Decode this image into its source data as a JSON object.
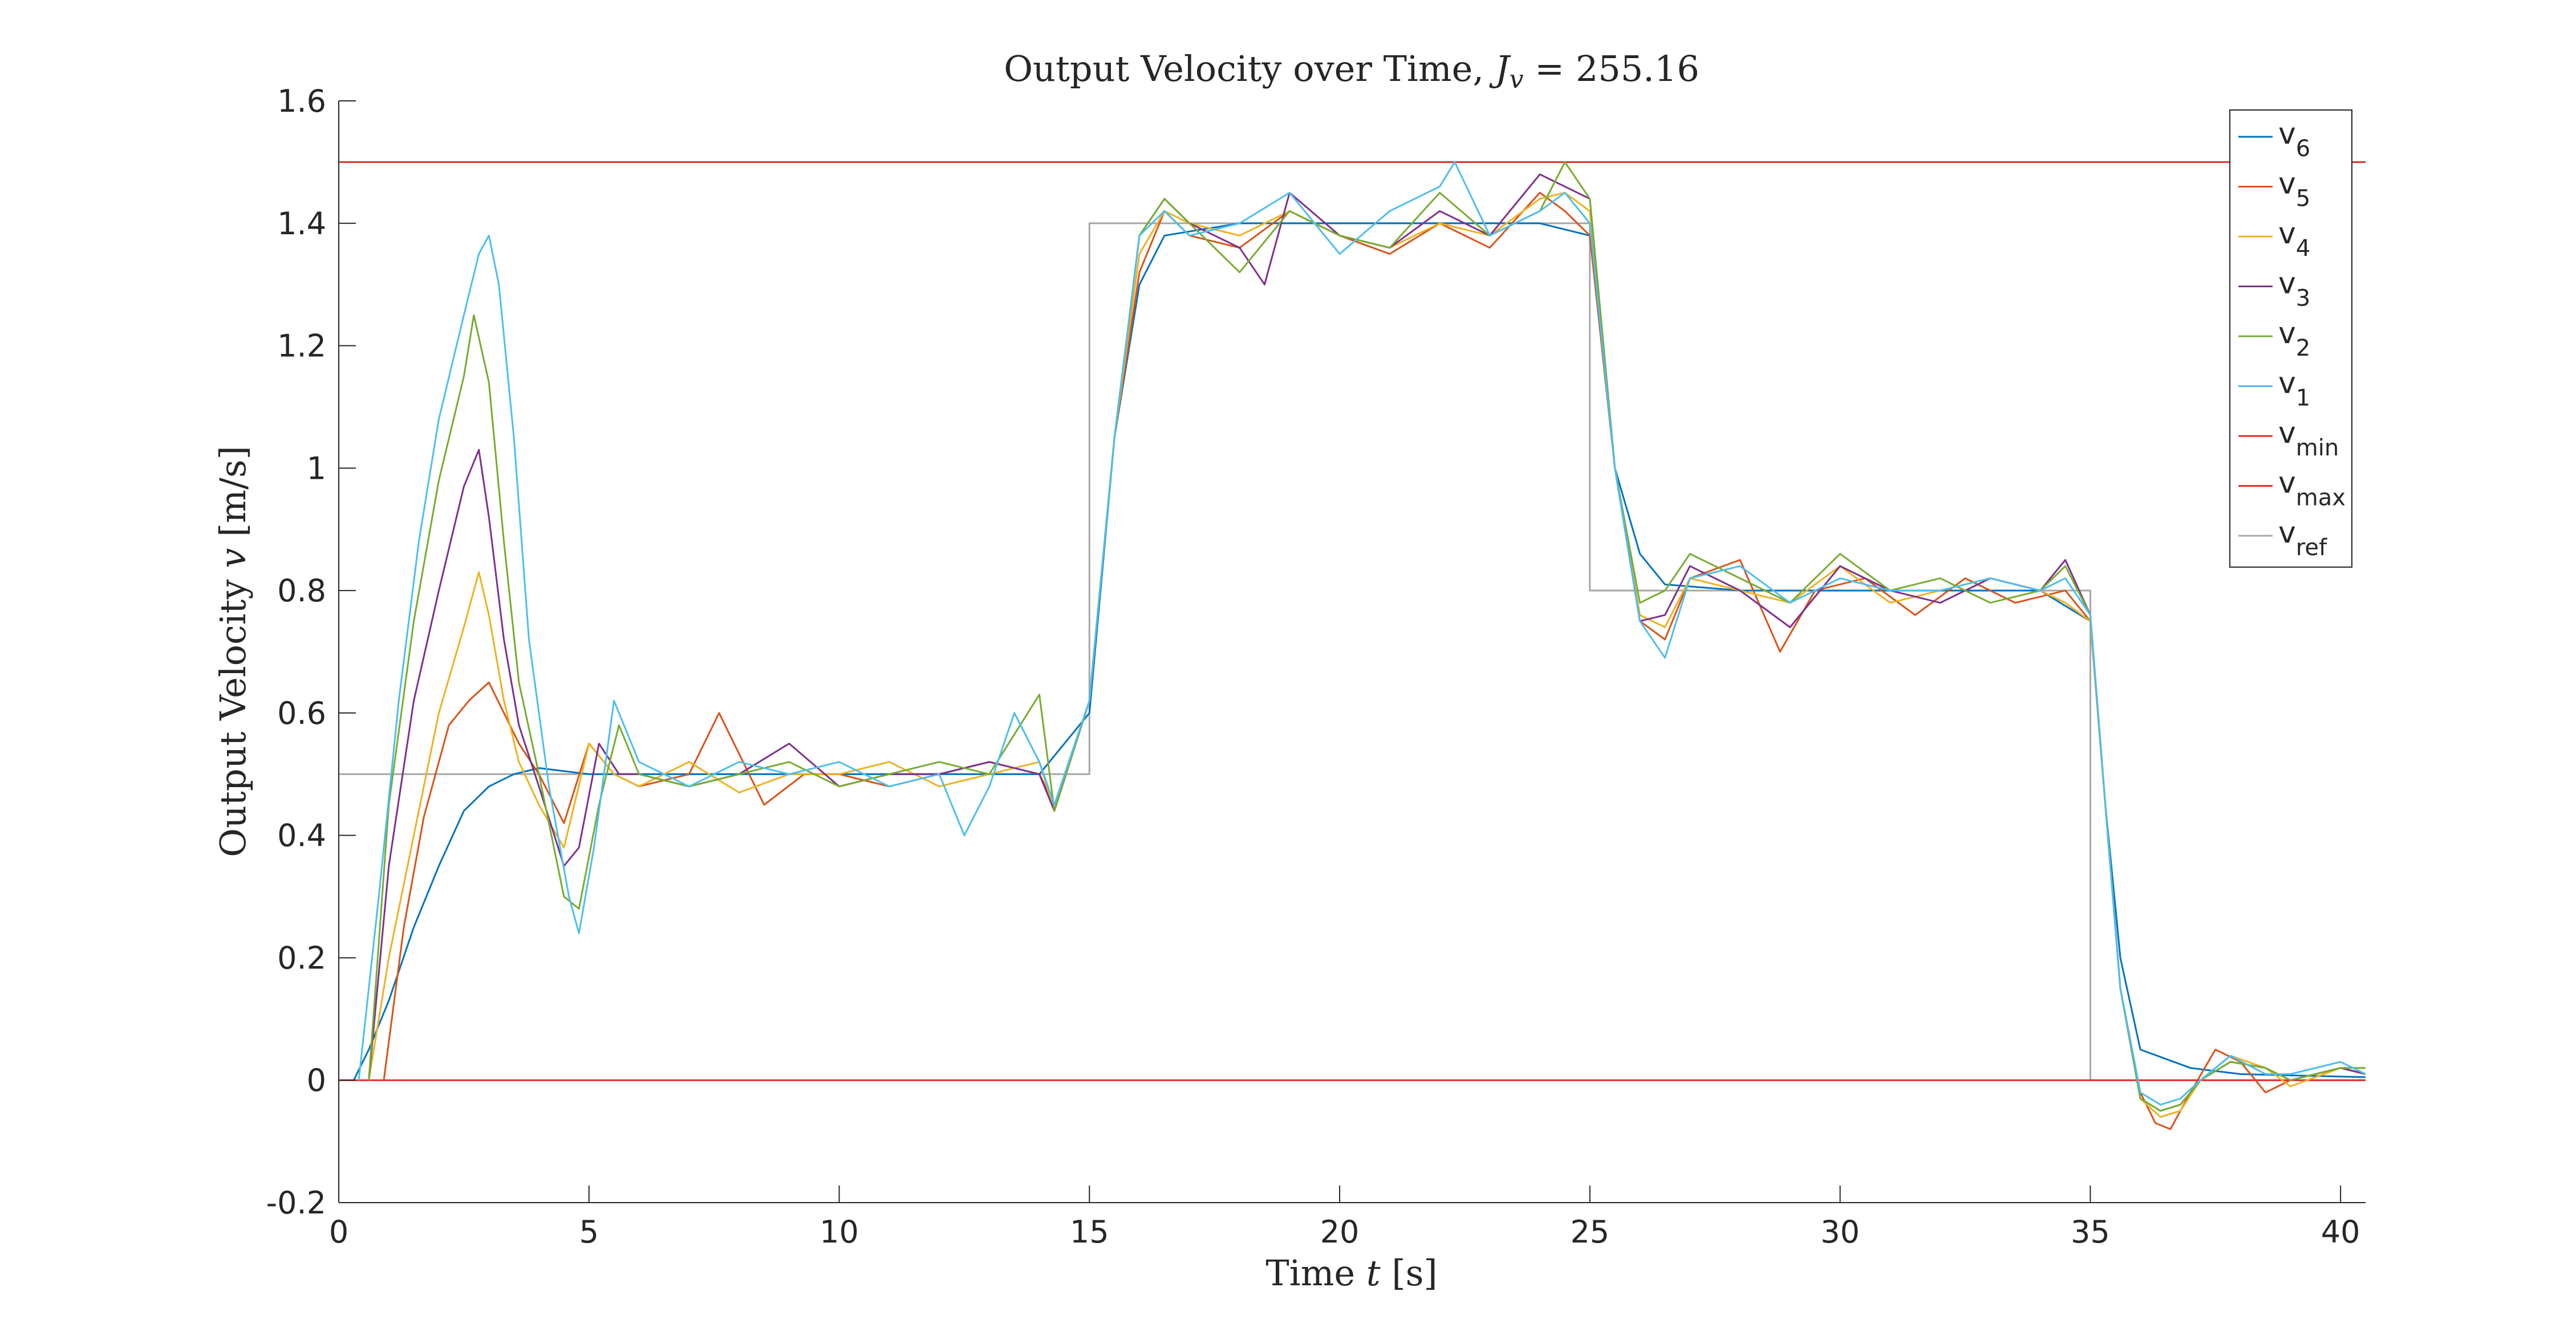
{
  "chart_data": {
    "type": "line",
    "title": "Output Velocity over Time, ",
    "title_math": {
      "J": "J",
      "sub": "v",
      "eq": " = 255.16"
    },
    "xlabel": {
      "text": "Time ",
      "var": "t",
      "unit": "[s]"
    },
    "ylabel": {
      "text": "Output Velocity ",
      "var": "v",
      "unit": "[m/s]"
    },
    "xlim": [
      0,
      40.5
    ],
    "ylim": [
      -0.2,
      1.6
    ],
    "xticks": [
      0,
      5,
      10,
      15,
      20,
      25,
      30,
      35,
      40
    ],
    "yticks": [
      -0.2,
      0,
      0.2,
      0.4,
      0.6,
      0.8,
      1,
      1.2,
      1.4,
      1.6
    ],
    "xtick_labels": [
      "0",
      "5",
      "10",
      "15",
      "20",
      "25",
      "30",
      "35",
      "40"
    ],
    "ytick_labels": [
      "-0.2",
      "0",
      "0.2",
      "0.4",
      "0.6",
      "0.8",
      "1",
      "1.2",
      "1.4",
      "1.6"
    ],
    "grid": false,
    "legend_position": "top-right",
    "series": [
      {
        "name": "v",
        "sub": "6",
        "color": "#0072BD",
        "x": [
          0.3,
          0.6,
          1.0,
          1.5,
          2.0,
          2.5,
          3.0,
          3.5,
          4.0,
          5.0,
          6.0,
          8.0,
          10.0,
          12.0,
          14.0,
          15.0,
          15.5,
          16.0,
          16.5,
          18.0,
          20.0,
          22.0,
          24.0,
          25.0,
          25.5,
          26.0,
          26.5,
          28.0,
          30.0,
          32.0,
          34.0,
          35.0,
          35.3,
          35.6,
          36.0,
          37.0,
          38.0,
          40.5
        ],
        "y": [
          0.0,
          0.05,
          0.13,
          0.25,
          0.35,
          0.44,
          0.48,
          0.5,
          0.51,
          0.5,
          0.5,
          0.5,
          0.5,
          0.5,
          0.5,
          0.6,
          1.05,
          1.3,
          1.38,
          1.4,
          1.4,
          1.4,
          1.4,
          1.38,
          1.0,
          0.86,
          0.81,
          0.8,
          0.8,
          0.8,
          0.8,
          0.75,
          0.45,
          0.2,
          0.05,
          0.02,
          0.01,
          0.005
        ]
      },
      {
        "name": "v",
        "sub": "5",
        "color": "#D95319",
        "x": [
          0.9,
          1.3,
          1.7,
          2.2,
          2.6,
          3.0,
          3.3,
          3.6,
          4.0,
          4.5,
          5.0,
          5.5,
          6.0,
          7.0,
          7.6,
          8.5,
          9.3,
          10.0,
          11.0,
          12.0,
          13.0,
          14.0,
          14.3,
          15.0,
          15.5,
          16.0,
          16.5,
          17.0,
          18.0,
          19.0,
          20.0,
          21.0,
          22.0,
          23.0,
          24.0,
          24.5,
          25.0,
          25.5,
          26.0,
          26.5,
          27.0,
          28.0,
          28.8,
          29.5,
          30.5,
          31.5,
          32.5,
          33.5,
          34.5,
          35.0,
          35.3,
          35.6,
          36.0,
          36.3,
          36.6,
          37.0,
          37.5,
          38.0,
          38.5,
          39.0,
          40.0,
          40.5
        ],
        "y": [
          0.0,
          0.25,
          0.43,
          0.58,
          0.62,
          0.65,
          0.6,
          0.55,
          0.5,
          0.42,
          0.55,
          0.5,
          0.48,
          0.5,
          0.6,
          0.45,
          0.5,
          0.5,
          0.48,
          0.5,
          0.52,
          0.5,
          0.45,
          0.62,
          1.05,
          1.32,
          1.42,
          1.38,
          1.36,
          1.42,
          1.38,
          1.35,
          1.4,
          1.36,
          1.45,
          1.42,
          1.38,
          1.0,
          0.75,
          0.72,
          0.82,
          0.85,
          0.7,
          0.8,
          0.82,
          0.76,
          0.82,
          0.78,
          0.8,
          0.75,
          0.45,
          0.15,
          -0.02,
          -0.07,
          -0.08,
          -0.02,
          0.05,
          0.03,
          -0.02,
          0.0,
          0.02,
          0.01
        ]
      },
      {
        "name": "v",
        "sub": "4",
        "color": "#EDB120",
        "x": [
          0.6,
          1.0,
          1.5,
          2.0,
          2.5,
          2.8,
          3.0,
          3.3,
          3.6,
          4.0,
          4.5,
          5.0,
          5.5,
          6.0,
          7.0,
          8.0,
          9.0,
          10.0,
          11.0,
          12.0,
          13.0,
          14.0,
          14.3,
          15.0,
          15.5,
          16.0,
          16.5,
          17.0,
          18.0,
          19.0,
          20.0,
          21.0,
          22.0,
          23.0,
          24.0,
          24.5,
          25.0,
          25.5,
          26.0,
          26.5,
          27.0,
          28.0,
          29.0,
          30.0,
          31.0,
          32.0,
          33.0,
          34.0,
          34.5,
          35.0,
          35.3,
          35.6,
          36.0,
          36.4,
          36.8,
          37.2,
          37.8,
          38.5,
          39.0,
          40.0,
          40.5
        ],
        "y": [
          0.0,
          0.2,
          0.4,
          0.6,
          0.74,
          0.83,
          0.76,
          0.62,
          0.52,
          0.45,
          0.38,
          0.55,
          0.5,
          0.48,
          0.52,
          0.47,
          0.5,
          0.5,
          0.52,
          0.48,
          0.5,
          0.52,
          0.44,
          0.62,
          1.05,
          1.35,
          1.42,
          1.4,
          1.38,
          1.42,
          1.38,
          1.36,
          1.4,
          1.38,
          1.44,
          1.45,
          1.42,
          1.0,
          0.76,
          0.74,
          0.82,
          0.8,
          0.78,
          0.84,
          0.78,
          0.8,
          0.82,
          0.8,
          0.78,
          0.75,
          0.45,
          0.15,
          -0.03,
          -0.06,
          -0.05,
          0.0,
          0.04,
          0.02,
          -0.01,
          0.02,
          0.01
        ]
      },
      {
        "name": "v",
        "sub": "3",
        "color": "#7E2F8E",
        "x": [
          0.6,
          1.0,
          1.5,
          2.0,
          2.5,
          2.8,
          3.0,
          3.3,
          3.6,
          4.0,
          4.5,
          4.8,
          5.2,
          5.6,
          6.0,
          7.0,
          8.0,
          9.0,
          10.0,
          11.0,
          12.0,
          13.0,
          14.0,
          14.3,
          15.0,
          15.5,
          16.0,
          16.5,
          17.0,
          18.0,
          18.5,
          19.0,
          20.0,
          21.0,
          22.0,
          23.0,
          24.0,
          24.5,
          25.0,
          25.5,
          26.0,
          26.5,
          27.0,
          28.0,
          29.0,
          30.0,
          31.0,
          32.0,
          33.0,
          34.0,
          34.5,
          35.0,
          35.3,
          35.6,
          36.0,
          36.4,
          36.8,
          37.2,
          37.8,
          38.5,
          39.0,
          40.0,
          40.5
        ],
        "y": [
          0.0,
          0.35,
          0.62,
          0.8,
          0.97,
          1.03,
          0.92,
          0.72,
          0.58,
          0.48,
          0.35,
          0.38,
          0.55,
          0.5,
          0.5,
          0.48,
          0.5,
          0.55,
          0.48,
          0.5,
          0.5,
          0.52,
          0.5,
          0.44,
          0.62,
          1.05,
          1.38,
          1.44,
          1.4,
          1.36,
          1.3,
          1.45,
          1.38,
          1.36,
          1.42,
          1.38,
          1.48,
          1.46,
          1.44,
          1.0,
          0.75,
          0.76,
          0.84,
          0.8,
          0.74,
          0.84,
          0.8,
          0.78,
          0.82,
          0.8,
          0.85,
          0.76,
          0.45,
          0.15,
          -0.03,
          -0.05,
          -0.04,
          0.0,
          0.03,
          0.02,
          0.0,
          0.02,
          0.01
        ]
      },
      {
        "name": "v",
        "sub": "2",
        "color": "#77AC30",
        "x": [
          0.6,
          1.0,
          1.5,
          2.0,
          2.5,
          2.7,
          3.0,
          3.3,
          3.6,
          4.0,
          4.5,
          4.8,
          5.2,
          5.6,
          6.0,
          7.0,
          8.0,
          9.0,
          10.0,
          11.0,
          12.0,
          13.0,
          14.0,
          14.3,
          15.0,
          15.5,
          16.0,
          16.5,
          17.0,
          18.0,
          19.0,
          20.0,
          21.0,
          22.0,
          23.0,
          24.0,
          24.5,
          25.0,
          25.5,
          26.0,
          26.5,
          27.0,
          28.0,
          29.0,
          30.0,
          31.0,
          32.0,
          33.0,
          34.0,
          34.5,
          35.0,
          35.3,
          35.6,
          36.0,
          36.4,
          36.8,
          37.2,
          37.8,
          38.5,
          39.0,
          40.0,
          40.5
        ],
        "y": [
          0.0,
          0.45,
          0.75,
          0.98,
          1.15,
          1.25,
          1.14,
          0.88,
          0.65,
          0.5,
          0.3,
          0.28,
          0.45,
          0.58,
          0.5,
          0.48,
          0.5,
          0.52,
          0.48,
          0.5,
          0.52,
          0.5,
          0.63,
          0.44,
          0.62,
          1.05,
          1.38,
          1.44,
          1.4,
          1.32,
          1.42,
          1.38,
          1.36,
          1.45,
          1.38,
          1.42,
          1.5,
          1.44,
          1.0,
          0.78,
          0.8,
          0.86,
          0.82,
          0.78,
          0.86,
          0.8,
          0.82,
          0.78,
          0.8,
          0.84,
          0.76,
          0.45,
          0.15,
          -0.03,
          -0.05,
          -0.04,
          0.0,
          0.03,
          0.02,
          0.0,
          0.02,
          0.02
        ]
      },
      {
        "name": "v",
        "sub": "1",
        "color": "#4DBEEE",
        "x": [
          0.4,
          0.8,
          1.2,
          1.6,
          2.0,
          2.5,
          2.8,
          3.0,
          3.2,
          3.5,
          3.8,
          4.2,
          4.6,
          4.8,
          5.1,
          5.5,
          6.0,
          7.0,
          8.0,
          9.0,
          10.0,
          11.0,
          12.0,
          12.5,
          13.0,
          13.5,
          14.0,
          14.3,
          15.0,
          15.5,
          16.0,
          16.5,
          17.0,
          18.0,
          19.0,
          20.0,
          21.0,
          22.0,
          22.3,
          23.0,
          24.0,
          24.5,
          25.0,
          25.5,
          26.0,
          26.5,
          27.0,
          28.0,
          29.0,
          30.0,
          31.0,
          32.0,
          33.0,
          34.0,
          34.5,
          35.0,
          35.3,
          35.6,
          36.0,
          36.4,
          36.8,
          37.2,
          37.8,
          38.5,
          39.0,
          40.0,
          40.5
        ],
        "y": [
          0.0,
          0.3,
          0.62,
          0.88,
          1.08,
          1.25,
          1.35,
          1.38,
          1.3,
          1.05,
          0.72,
          0.48,
          0.3,
          0.24,
          0.38,
          0.62,
          0.52,
          0.48,
          0.52,
          0.5,
          0.52,
          0.48,
          0.5,
          0.4,
          0.48,
          0.6,
          0.52,
          0.45,
          0.62,
          1.05,
          1.38,
          1.42,
          1.38,
          1.4,
          1.45,
          1.35,
          1.42,
          1.46,
          1.5,
          1.38,
          1.42,
          1.45,
          1.4,
          1.0,
          0.75,
          0.69,
          0.82,
          0.84,
          0.78,
          0.82,
          0.8,
          0.8,
          0.82,
          0.8,
          0.82,
          0.76,
          0.45,
          0.15,
          -0.02,
          -0.04,
          -0.03,
          0.0,
          0.04,
          0.01,
          0.01,
          0.03,
          0.01
        ]
      },
      {
        "name": "v",
        "sub": "min",
        "color": "#E32B2B",
        "x": [
          0,
          40.5
        ],
        "y": [
          0,
          0
        ]
      },
      {
        "name": "v",
        "sub": "max",
        "color": "#E32B2B",
        "x": [
          0,
          40.5
        ],
        "y": [
          1.5,
          1.5
        ]
      },
      {
        "name": "v",
        "sub": "ref",
        "color": "#A6A6A6",
        "x": [
          0,
          15,
          15,
          25,
          25,
          35,
          35,
          40.5
        ],
        "y": [
          0.5,
          0.5,
          1.4,
          1.4,
          0.8,
          0.8,
          0,
          0
        ]
      }
    ]
  }
}
